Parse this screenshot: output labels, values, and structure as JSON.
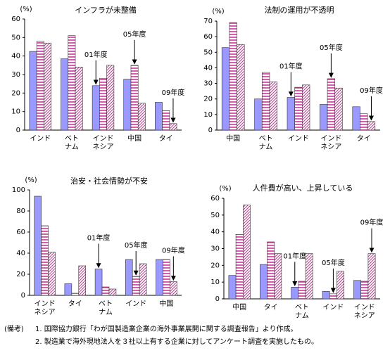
{
  "chart_data": [
    {
      "type": "bar",
      "title": "インフラが未整備",
      "ylabel": "(%)",
      "categories": [
        "インド",
        "ベト\nナム",
        "インド\nネシア",
        "中国",
        "タイ"
      ],
      "series": [
        {
          "name": "01年度",
          "color": "#9999ff",
          "pattern": "solid",
          "values": [
            42.5,
            38.5,
            24,
            27.5,
            15
          ]
        },
        {
          "name": "05年度",
          "color": "#cc3399",
          "pattern": "horizontal",
          "values": [
            48,
            51,
            28,
            35,
            10.5
          ]
        },
        {
          "name": "09年度",
          "color": "#cc3399",
          "pattern": "diagonal",
          "values": [
            47,
            34,
            35,
            14.5,
            3.5
          ]
        }
      ],
      "ylim": [
        0,
        60
      ],
      "yticks": [
        0,
        10,
        20,
        30,
        40,
        50,
        60
      ],
      "grid": false
    },
    {
      "type": "bar",
      "title": "法制の運用が不透明",
      "ylabel": "(%)",
      "categories": [
        "中国",
        "ベト\nナム",
        "インド",
        "インド\nネシア",
        "タイ"
      ],
      "series": [
        {
          "name": "01年度",
          "color": "#9999ff",
          "pattern": "solid",
          "values": [
            53,
            20,
            21,
            16.5,
            15
          ]
        },
        {
          "name": "05年度",
          "color": "#cc3399",
          "pattern": "horizontal",
          "values": [
            69,
            37,
            27.5,
            33,
            10.5
          ]
        },
        {
          "name": "09年度",
          "color": "#cc3399",
          "pattern": "diagonal",
          "values": [
            55,
            31,
            29,
            27,
            5.5
          ]
        }
      ],
      "ylim": [
        0,
        70
      ],
      "yticks": [
        0,
        10,
        20,
        30,
        40,
        50,
        60,
        70
      ],
      "grid": false
    },
    {
      "type": "bar",
      "title": "治安・社会情勢が不安",
      "ylabel": "(%)",
      "categories": [
        "インド\nネシア",
        "タイ",
        "ベト\nナム",
        "インド",
        "中国"
      ],
      "series": [
        {
          "name": "01年度",
          "color": "#9999ff",
          "pattern": "solid",
          "values": [
            94,
            11,
            25,
            34,
            34
          ]
        },
        {
          "name": "05年度",
          "color": "#cc3399",
          "pattern": "horizontal",
          "values": [
            66,
            2,
            8,
            18,
            34
          ]
        },
        {
          "name": "09年度",
          "color": "#cc3399",
          "pattern": "diagonal",
          "values": [
            41,
            28,
            6,
            30,
            13
          ]
        }
      ],
      "ylim": [
        0,
        100
      ],
      "yticks": [
        0,
        20,
        40,
        60,
        80,
        100
      ],
      "grid": false
    },
    {
      "type": "bar",
      "title": "人件費が高い、上昇している",
      "ylabel": "(%)",
      "categories": [
        "中国",
        "タイ",
        "ベト\nナム",
        "インド",
        "インド\nネシア"
      ],
      "series": [
        {
          "name": "01年度",
          "color": "#9999ff",
          "pattern": "solid",
          "values": [
            14,
            20.5,
            7,
            4.5,
            11
          ]
        },
        {
          "name": "05年度",
          "color": "#cc3399",
          "pattern": "horizontal",
          "values": [
            38.5,
            34,
            10.5,
            3,
            10.5
          ]
        },
        {
          "name": "09年度",
          "color": "#cc3399",
          "pattern": "diagonal",
          "values": [
            56,
            27,
            27,
            16.5,
            27
          ]
        }
      ],
      "ylim": [
        0,
        60
      ],
      "yticks": [
        0,
        10,
        20,
        30,
        40,
        50,
        60
      ],
      "grid": false
    }
  ],
  "notes": {
    "label": "(備考)",
    "items": [
      "1. 国際協力銀行「わが国製造業企業の海外事業展開に関する調査報告」より作成。",
      "2. 製造業で海外現地法人を３社以上有する企業に対してアンケート調査を実施したもの。"
    ]
  }
}
